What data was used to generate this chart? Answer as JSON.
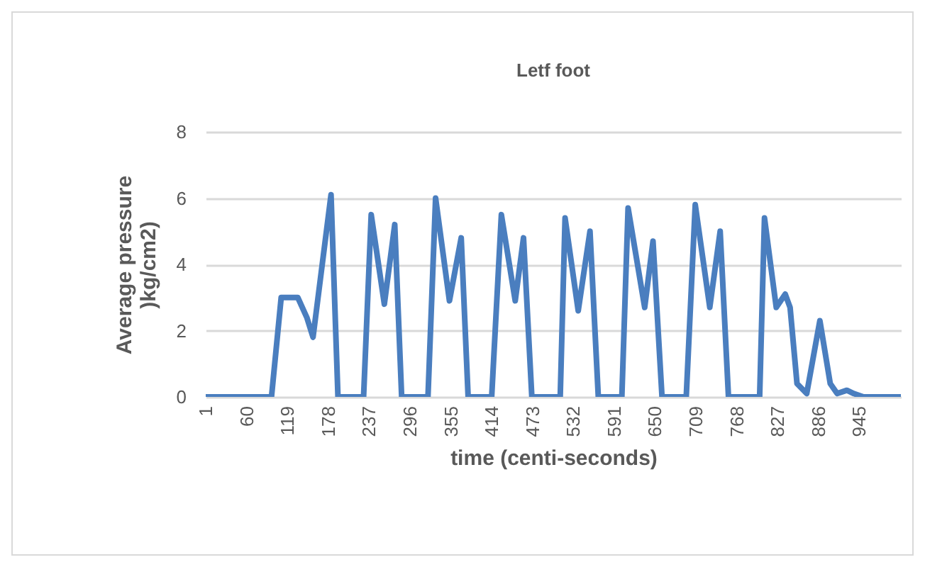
{
  "chart_data": {
    "type": "line",
    "title": "Letf foot",
    "xlabel": "time (centi-seconds)",
    "ylabel": "Average pressure )kg/cm2)",
    "x": [
      1,
      96,
      110,
      134,
      147,
      156,
      182,
      192,
      229,
      240,
      259,
      274,
      284,
      322,
      333,
      353,
      370,
      380,
      414,
      428,
      448,
      460,
      472,
      513,
      520,
      539,
      556,
      568,
      602,
      611,
      635,
      647,
      660,
      695,
      708,
      729,
      744,
      756,
      801,
      808,
      825,
      838,
      845,
      855,
      869,
      888,
      903,
      913,
      927,
      937,
      951,
      1005
    ],
    "series": [
      {
        "color": "#4a7ebf",
        "values": [
          0,
          0,
          3.0,
          3.0,
          2.4,
          1.8,
          6.1,
          0,
          0,
          5.5,
          2.8,
          5.2,
          0,
          0,
          6.0,
          2.9,
          4.8,
          0,
          0,
          5.5,
          2.9,
          4.8,
          0,
          0,
          5.4,
          2.6,
          5.0,
          0,
          0,
          5.7,
          2.7,
          4.7,
          0,
          0,
          5.8,
          2.7,
          5.0,
          0,
          0,
          5.4,
          2.7,
          3.1,
          2.7,
          0.4,
          0.1,
          2.3,
          0.4,
          0.1,
          0.2,
          0.1,
          0,
          0
        ]
      }
    ],
    "xlim": [
      1,
      1005
    ],
    "xticks": [
      1,
      60,
      119,
      178,
      237,
      296,
      355,
      414,
      473,
      532,
      591,
      650,
      709,
      768,
      827,
      886,
      945
    ],
    "ylim": [
      0,
      8
    ],
    "yticks": [
      0,
      2,
      4,
      6,
      8
    ],
    "grid": "y",
    "legend": false,
    "marker": "none",
    "line_style": "solid"
  }
}
